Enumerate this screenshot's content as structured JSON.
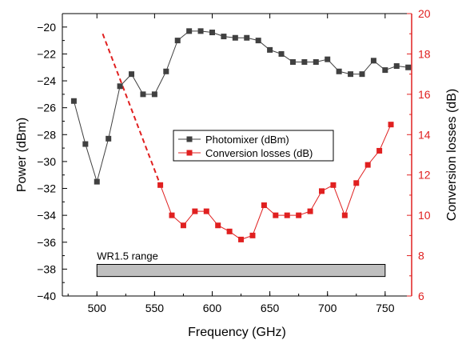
{
  "chart_data": {
    "type": "line",
    "xlabel": "Frequency (GHz)",
    "ylabel_left": "Power (dBm)",
    "ylabel_right": "Conversion losses (dB)",
    "xlim": [
      470,
      773
    ],
    "ylim_left": [
      -40,
      -19
    ],
    "ylim_right": [
      6,
      20
    ],
    "xticks": [
      500,
      550,
      600,
      650,
      700,
      750
    ],
    "yticks_left": [
      -40,
      -38,
      -36,
      -34,
      -32,
      -30,
      -28,
      -26,
      -24,
      -22,
      -20
    ],
    "yticks_right": [
      6,
      8,
      10,
      12,
      14,
      16,
      18,
      20
    ],
    "legend_position": "center",
    "series": [
      {
        "name": "Photomixer (dBm)",
        "axis": "left",
        "color": "#404040",
        "marker": "square",
        "x": [
          480,
          490,
          500,
          510,
          520,
          530,
          540,
          550,
          560,
          570,
          580,
          590,
          600,
          610,
          620,
          630,
          640,
          650,
          660,
          670,
          680,
          690,
          700,
          710,
          720,
          730,
          740,
          750,
          760,
          770
        ],
        "y": [
          -25.5,
          -28.7,
          -31.5,
          -28.3,
          -24.4,
          -23.5,
          -25.0,
          -25.0,
          -23.3,
          -21.0,
          -20.3,
          -20.3,
          -20.4,
          -20.7,
          -20.8,
          -20.8,
          -21.0,
          -21.7,
          -22.0,
          -22.6,
          -22.6,
          -22.6,
          -22.4,
          -23.3,
          -23.5,
          -23.5,
          -22.5,
          -23.2,
          -22.9,
          -23.0
        ]
      },
      {
        "name": "Conversion losses (dB)",
        "axis": "right",
        "color": "#e02020",
        "marker": "square",
        "x": [
          555,
          565,
          575,
          585,
          595,
          605,
          615,
          625,
          635,
          645,
          655,
          665,
          675,
          685,
          695,
          705,
          715,
          725,
          735,
          745,
          755
        ],
        "y": [
          11.5,
          10.0,
          9.5,
          10.2,
          10.2,
          9.5,
          9.2,
          8.8,
          9.0,
          10.5,
          10.0,
          10.0,
          10.0,
          10.2,
          11.2,
          11.5,
          10.0,
          11.6,
          12.5,
          13.2,
          14.5
        ]
      }
    ],
    "extrapolation": {
      "series": "Conversion losses (dB)",
      "style": "dashed",
      "x": [
        505,
        555
      ],
      "y": [
        19.0,
        11.5
      ]
    },
    "range_bar": {
      "label": "WR1.5 range",
      "x_start": 500,
      "x_end": 750
    }
  }
}
